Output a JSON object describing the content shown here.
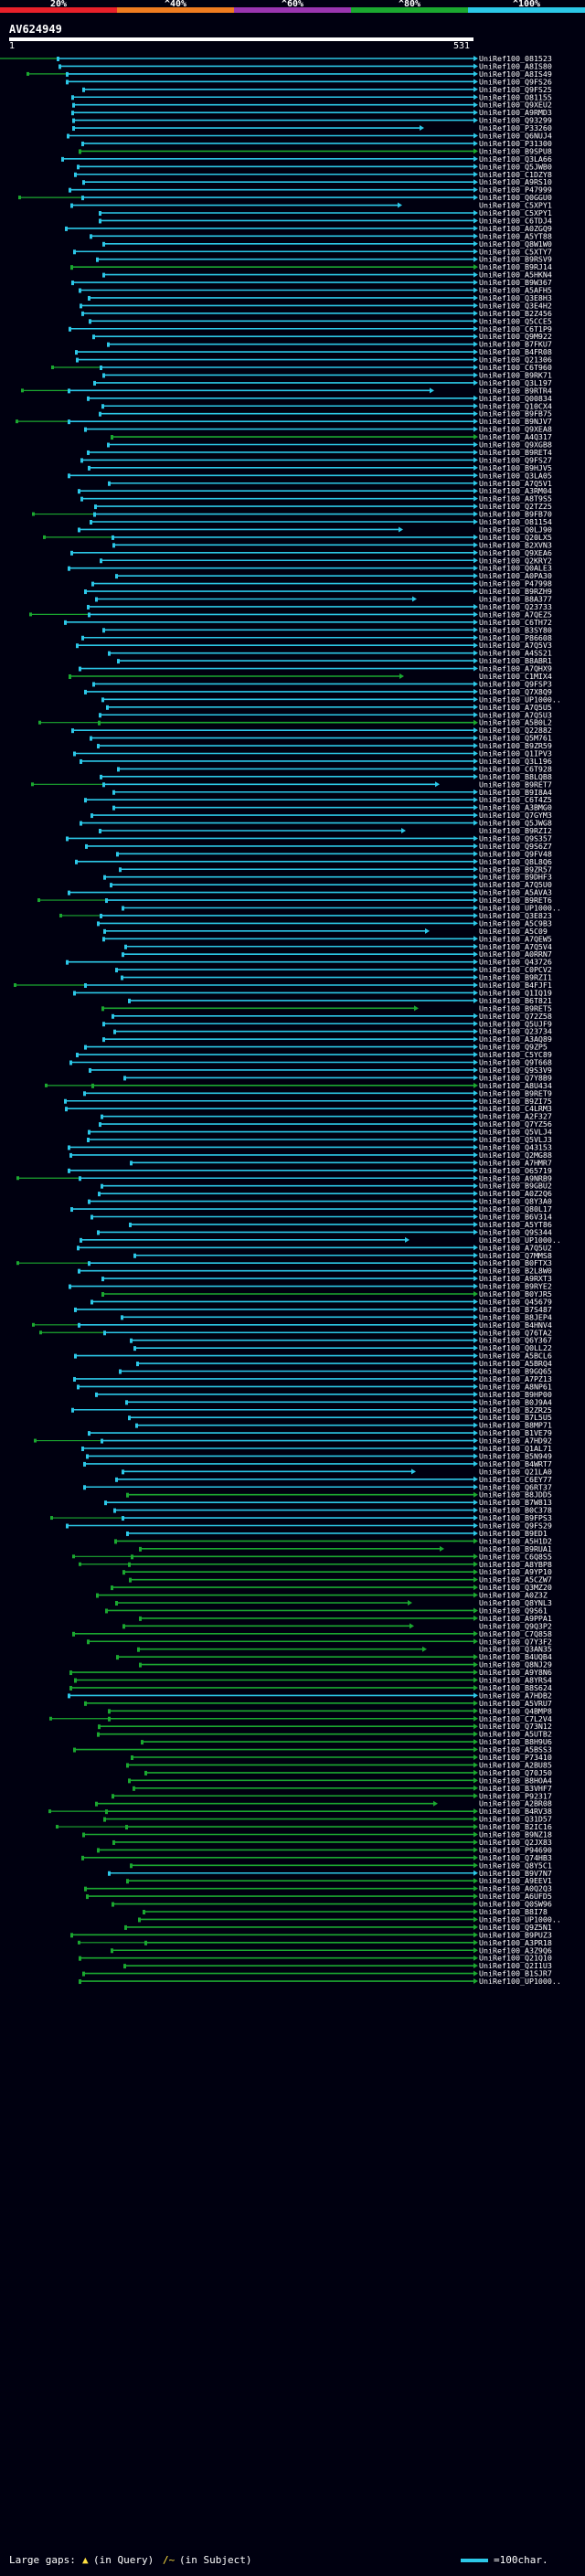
{
  "scale": {
    "labels": [
      "20%",
      "^40%",
      "^60%",
      "^80%",
      "^100%"
    ],
    "colors": [
      "#e8202a",
      "#ef7c20",
      "#9a35b0",
      "#1ba830",
      "#2cc8e8"
    ]
  },
  "query": {
    "name": "AV624949",
    "start": "1",
    "end": "531"
  },
  "hit_prefix": "UniRef100_",
  "hit_ids": [
    "081523",
    "A8IS80",
    "A8IS49",
    "Q9FS26",
    "Q9FS25",
    "O81155",
    "Q9XEU2",
    "A9RMD3",
    "Q93299",
    "P33260",
    "Q6NUJ4",
    "P31300",
    "B9SPU8",
    "Q3LA66",
    "Q5JWB0",
    "C1DZY8",
    "A9RS10",
    "P47999",
    "Q0GGU0",
    "C5XPY1",
    "C5XPY1",
    "C6TDJ4",
    "A0ZGQ9",
    "A5YT88",
    "Q8W1W0",
    "C5XTY7",
    "B9RSV9",
    "B9RJ14",
    "A5HKN4",
    "B9W367",
    "A5AFH5",
    "Q3E8H3",
    "Q3E4H2",
    "B2Z456",
    "Q5CCE5",
    "C6T1P9",
    "Q9M922",
    "B7FKU7",
    "B4FR08",
    "Q21306",
    "C6T960",
    "B9RK71",
    "Q3L197",
    "B9RTR4",
    "Q00834",
    "Q10CX4",
    "B9FB75",
    "B9NJV7",
    "Q9XEA8",
    "A4Q317",
    "Q9XGB8",
    "B9RET4",
    "Q9FS27",
    "B9HJV5",
    "Q3LA05",
    "A7Q5V1",
    "A3RM04",
    "A8T9S5",
    "Q2TZ25",
    "B9FB70",
    "O81154",
    "Q0LJ90",
    "Q20LX5",
    "B2XVN3",
    "Q9XEA6",
    "Q2KRY2",
    "Q0ALE3",
    "A0PA30",
    "P47998",
    "B9RZH9",
    "B8A377",
    "Q23733",
    "A7QEZ5",
    "C6TH72",
    "B3SY80",
    "P86608",
    "A7Q5V3",
    "A4SS21",
    "B8ABR1",
    "A7QHX9",
    "C1MIX4",
    "Q9FSP3",
    "Q7X8Q9",
    "UP1000..",
    "A7Q5U5",
    "A7Q5U3",
    "A5B0L2",
    "Q22882",
    "Q5M761",
    "B9ZR59",
    "Q1IPV3",
    "Q3L196",
    "C6T928",
    "B8LQB8",
    "B9RET7",
    "B9I8A4",
    "C6T4Z5",
    "A3BMG0",
    "Q7GYM3",
    "Q5JWG8",
    "B9RZI2",
    "Q9S357",
    "Q9S6Z7",
    "Q9FV48",
    "Q8L8Q6",
    "B9ZR57",
    "B9DHF3",
    "A7Q5U0",
    "A5AVA3",
    "B9RET6",
    "UP1000..",
    "Q3E823",
    "A5C9B3",
    "A5C09",
    "A7QEW5",
    "A7Q5V4",
    "A0RRN7",
    "Q43726",
    "C0PCV2",
    "B9RZI1",
    "B4FJF1",
    "Q1IQ19",
    "B6T821",
    "B9RET5",
    "Q72Z58",
    "Q5UJF9",
    "Q23734",
    "A3AQ89",
    "Q9ZP5",
    "C5YC89",
    "Q9T668",
    "Q9S3V9",
    "Q7Y8B9",
    "A8U434",
    "B9RET9",
    "B9ZI75",
    "C4LRM3",
    "A2F327",
    "Q7YZ56",
    "Q5VLJ4",
    "Q5VLJ3",
    "Q43153",
    "Q2MG88",
    "A7HMR7",
    "O65719",
    "A9NRB9",
    "B9GBU2",
    "A0Z2Q6",
    "Q8Y3A0",
    "Q80L17",
    "B6V314",
    "A5YT86",
    "Q9S344",
    "UP1000..",
    "A7Q5U2",
    "Q7MMS8",
    "B0FTX3",
    "B2L8W0",
    "A9RXT3",
    "B9RYE2",
    "B0YJR5",
    "Q45679",
    "B7S487",
    "B8JEP4",
    "B4HNV4",
    "Q76TA2",
    "Q6Y367",
    "Q0LL22",
    "A5BCL6",
    "A5BRQ4",
    "B9GQ65",
    "A7PZ13",
    "A8NP61",
    "B9HP00",
    "B0J9A4",
    "B2ZR25",
    "B7L5U5",
    "B8MP71",
    "B1VE79",
    "A7HD92",
    "Q1AL71",
    "B5N949",
    "B4WRT7",
    "Q21LA0",
    "C6EY77",
    "Q6RT37",
    "B8JDD5",
    "B7W813",
    "B0C378",
    "B9FPS3",
    "Q9FS29",
    "B9ED1",
    "A5H1D2",
    "B9RUA1",
    "C6Q8S5",
    "A8YBP8",
    "A9YP10",
    "A5CZW7",
    "Q3MZ20",
    "A0Z3Z",
    "Q8YNL3",
    "Q9S61",
    "A9PPA1",
    "Q9Q3P2",
    "C7Q858",
    "Q7Y3F2",
    "Q3AN35",
    "B4UQB4",
    "Q8NJ29",
    "A9Y8N6",
    "A8YRS4",
    "B8S624",
    "A7HDB2",
    "A5VRU7",
    "Q4BMP8",
    "C7L2V4",
    "Q73N12",
    "A5UTB2",
    "B8H9U6",
    "A5BSS3",
    "P73410",
    "A2BU85",
    "Q70J50",
    "B8HOA4",
    "B3VHF7",
    "P92317",
    "A2BR08",
    "B4RV38",
    "Q31D57",
    "B2IC16",
    "B9NZ18",
    "Q2JX83",
    "P94690",
    "Q74HB3",
    "Q8Y5C1",
    "B9V7N7",
    "A9EEV1",
    "A0Q2Q3",
    "A6UFD5",
    "Q0SW96",
    "B8I78",
    "UP1000..",
    "Q9Z5N1",
    "B9PUZ3",
    "A3PR18",
    "A3Z9Q6",
    "Q21Q10",
    "Q2I1U3",
    "B1SJR7",
    "UP1000.."
  ],
  "footer": {
    "large_gaps": "Large gaps:",
    "q_mark": "▲",
    "in_query": "(in Query)",
    "s_mark": "/~",
    "in_subject": "(in Subject)",
    "legend": "=100char."
  }
}
